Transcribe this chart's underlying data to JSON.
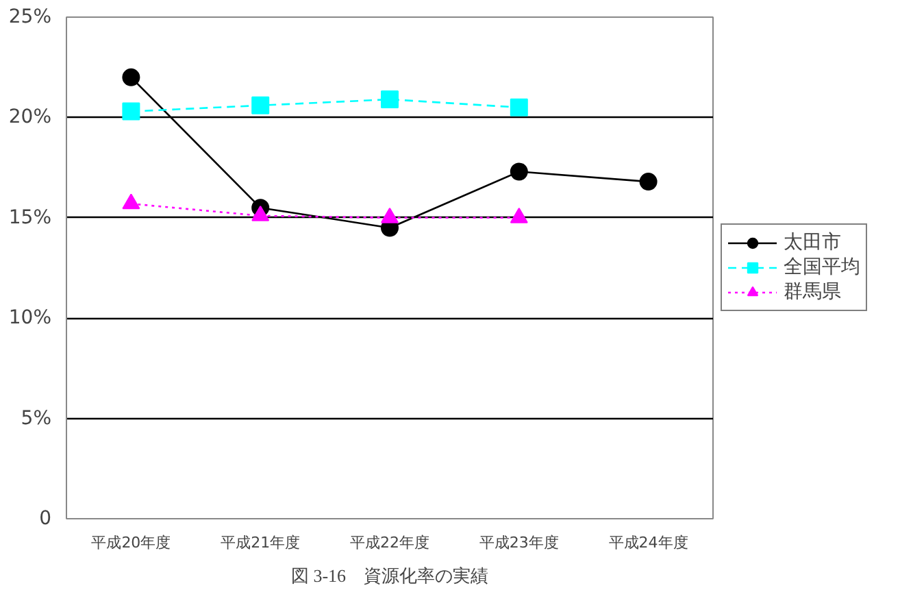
{
  "chart_data": {
    "type": "line",
    "title": "図 3-16　資源化率の実績",
    "categories": [
      "平成20年度",
      "平成21年度",
      "平成22年度",
      "平成23年度",
      "平成24年度"
    ],
    "series": [
      {
        "name": "太田市",
        "color": "#000000",
        "values": [
          22.0,
          15.5,
          14.5,
          17.3,
          16.8
        ],
        "marker": "circle",
        "line_style": "solid"
      },
      {
        "name": "全国平均",
        "color": "#00ffff",
        "values": [
          20.3,
          20.6,
          20.9,
          20.5,
          null
        ],
        "marker": "square",
        "line_style": "dashed"
      },
      {
        "name": "群馬県",
        "color": "#ff00ff",
        "values": [
          15.7,
          15.1,
          15.0,
          15.0,
          null
        ],
        "marker": "triangle",
        "line_style": "dotted"
      }
    ],
    "ylim": [
      0,
      25
    ],
    "yticks": [
      {
        "value": 0,
        "label": "0"
      },
      {
        "value": 5,
        "label": "5%"
      },
      {
        "value": 10,
        "label": "10%"
      },
      {
        "value": 15,
        "label": "15%"
      },
      {
        "value": 20,
        "label": "20%"
      },
      {
        "value": 25,
        "label": "25%"
      }
    ],
    "grid": "y",
    "legend": "right"
  }
}
